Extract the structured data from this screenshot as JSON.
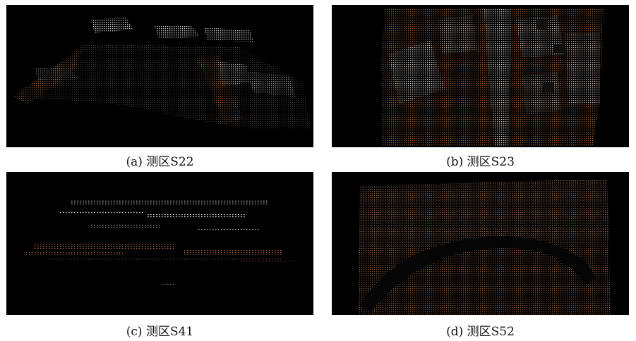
{
  "figure": {
    "panels": [
      {
        "id": "a",
        "caption": "(a) 测区S22"
      },
      {
        "id": "b",
        "caption": "(b) 测区S23"
      },
      {
        "id": "c",
        "caption": "(c) 测区S41"
      },
      {
        "id": "d",
        "caption": "(d) 测区S52"
      }
    ]
  },
  "colors": {
    "background": "#000000",
    "ground_points": "#b06a3a",
    "building_points": "#d8d8d8"
  }
}
